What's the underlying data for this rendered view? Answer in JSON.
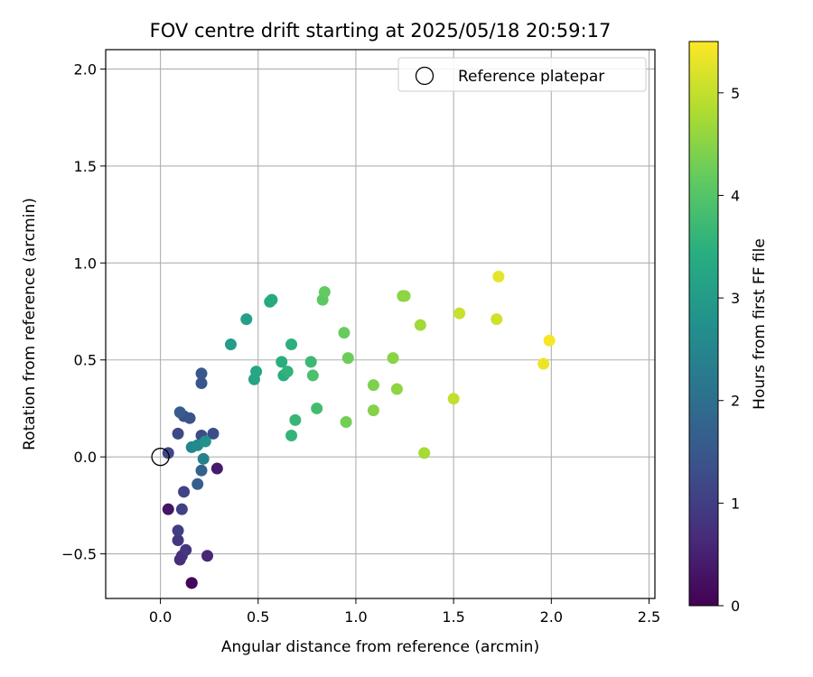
{
  "chart_data": {
    "type": "scatter",
    "title": "FOV centre drift starting at 2025/05/18 20:59:17",
    "xlabel": "Angular distance from reference (arcmin)",
    "ylabel": "Rotation from reference (arcmin)",
    "xlim": [
      -0.28,
      2.53
    ],
    "ylim": [
      -0.73,
      2.1
    ],
    "xticks": [
      0.0,
      0.5,
      1.0,
      1.5,
      2.0,
      2.5
    ],
    "xtick_labels": [
      "0.0",
      "0.5",
      "1.0",
      "1.5",
      "2.0",
      "2.5"
    ],
    "yticks": [
      -0.5,
      0.0,
      0.5,
      1.0,
      1.5,
      2.0
    ],
    "ytick_labels": [
      "−0.5",
      "0.0",
      "0.5",
      "1.0",
      "1.5",
      "2.0"
    ],
    "grid": true,
    "legend": {
      "placement": "top-right",
      "entries": [
        {
          "label": "Reference platepar",
          "marker": "open-circle"
        }
      ]
    },
    "reference_point": {
      "x": 0.0,
      "y": 0.0
    },
    "colorbar": {
      "label": "Hours from first FF file",
      "colormap": "viridis",
      "range": [
        0,
        5.5
      ],
      "ticks": [
        0,
        1,
        2,
        3,
        4,
        5
      ],
      "tick_labels": [
        "0",
        "1",
        "2",
        "3",
        "4",
        "5"
      ]
    },
    "point_color_variable": "hours",
    "points": [
      {
        "x": 0.16,
        "y": -0.65,
        "hours": 0.0
      },
      {
        "x": 0.16,
        "y": -0.65,
        "hours": 0.1
      },
      {
        "x": 0.04,
        "y": -0.27,
        "hours": 0.3
      },
      {
        "x": 0.29,
        "y": -0.06,
        "hours": 0.4
      },
      {
        "x": 0.24,
        "y": -0.51,
        "hours": 0.6
      },
      {
        "x": 0.1,
        "y": -0.53,
        "hours": 0.7
      },
      {
        "x": 0.11,
        "y": -0.51,
        "hours": 0.75
      },
      {
        "x": 0.13,
        "y": -0.48,
        "hours": 0.85
      },
      {
        "x": 0.09,
        "y": -0.43,
        "hours": 0.9
      },
      {
        "x": 0.09,
        "y": -0.38,
        "hours": 1.0
      },
      {
        "x": 0.11,
        "y": -0.27,
        "hours": 1.05
      },
      {
        "x": 0.12,
        "y": -0.18,
        "hours": 1.1
      },
      {
        "x": 0.04,
        "y": 0.02,
        "hours": 1.15
      },
      {
        "x": 0.09,
        "y": 0.12,
        "hours": 1.2
      },
      {
        "x": 0.21,
        "y": 0.11,
        "hours": 1.25
      },
      {
        "x": 0.27,
        "y": 0.12,
        "hours": 1.3
      },
      {
        "x": 0.12,
        "y": 0.21,
        "hours": 1.35
      },
      {
        "x": 0.15,
        "y": 0.2,
        "hours": 1.4
      },
      {
        "x": 0.21,
        "y": 0.38,
        "hours": 1.45
      },
      {
        "x": 0.21,
        "y": 0.43,
        "hours": 1.5
      },
      {
        "x": 0.1,
        "y": 0.23,
        "hours": 1.6
      },
      {
        "x": 0.19,
        "y": -0.14,
        "hours": 1.65
      },
      {
        "x": 0.21,
        "y": -0.07,
        "hours": 1.75
      },
      {
        "x": 0.22,
        "y": -0.01,
        "hours": 2.4
      },
      {
        "x": 0.16,
        "y": 0.05,
        "hours": 2.5
      },
      {
        "x": 0.19,
        "y": 0.06,
        "hours": 2.6
      },
      {
        "x": 0.23,
        "y": 0.08,
        "hours": 2.8
      },
      {
        "x": 0.36,
        "y": 0.58,
        "hours": 3.0
      },
      {
        "x": 0.44,
        "y": 0.71,
        "hours": 3.1
      },
      {
        "x": 0.48,
        "y": 0.4,
        "hours": 3.2
      },
      {
        "x": 0.49,
        "y": 0.44,
        "hours": 3.25
      },
      {
        "x": 0.56,
        "y": 0.8,
        "hours": 3.3
      },
      {
        "x": 0.57,
        "y": 0.81,
        "hours": 3.35
      },
      {
        "x": 0.63,
        "y": 0.42,
        "hours": 3.4
      },
      {
        "x": 0.62,
        "y": 0.49,
        "hours": 3.45
      },
      {
        "x": 0.65,
        "y": 0.44,
        "hours": 3.55
      },
      {
        "x": 0.67,
        "y": 0.58,
        "hours": 3.5
      },
      {
        "x": 0.67,
        "y": 0.11,
        "hours": 3.6
      },
      {
        "x": 0.69,
        "y": 0.19,
        "hours": 3.65
      },
      {
        "x": 0.77,
        "y": 0.49,
        "hours": 3.7
      },
      {
        "x": 0.78,
        "y": 0.42,
        "hours": 3.9
      },
      {
        "x": 0.8,
        "y": 0.25,
        "hours": 3.8
      },
      {
        "x": 0.83,
        "y": 0.81,
        "hours": 4.1
      },
      {
        "x": 0.84,
        "y": 0.85,
        "hours": 4.15
      },
      {
        "x": 0.94,
        "y": 0.64,
        "hours": 4.2
      },
      {
        "x": 0.95,
        "y": 0.18,
        "hours": 4.3
      },
      {
        "x": 0.96,
        "y": 0.51,
        "hours": 4.25
      },
      {
        "x": 1.09,
        "y": 0.37,
        "hours": 4.4
      },
      {
        "x": 1.09,
        "y": 0.24,
        "hours": 4.45
      },
      {
        "x": 1.19,
        "y": 0.51,
        "hours": 4.5
      },
      {
        "x": 1.21,
        "y": 0.35,
        "hours": 4.55
      },
      {
        "x": 1.24,
        "y": 0.83,
        "hours": 4.5
      },
      {
        "x": 1.25,
        "y": 0.83,
        "hours": 4.55
      },
      {
        "x": 1.33,
        "y": 0.68,
        "hours": 4.7
      },
      {
        "x": 1.35,
        "y": 0.02,
        "hours": 4.75
      },
      {
        "x": 1.5,
        "y": 0.3,
        "hours": 5.0
      },
      {
        "x": 1.53,
        "y": 0.74,
        "hours": 5.05
      },
      {
        "x": 1.72,
        "y": 0.71,
        "hours": 5.1
      },
      {
        "x": 1.73,
        "y": 0.93,
        "hours": 5.3
      },
      {
        "x": 1.96,
        "y": 0.48,
        "hours": 5.35
      },
      {
        "x": 1.99,
        "y": 0.6,
        "hours": 5.45
      }
    ]
  }
}
